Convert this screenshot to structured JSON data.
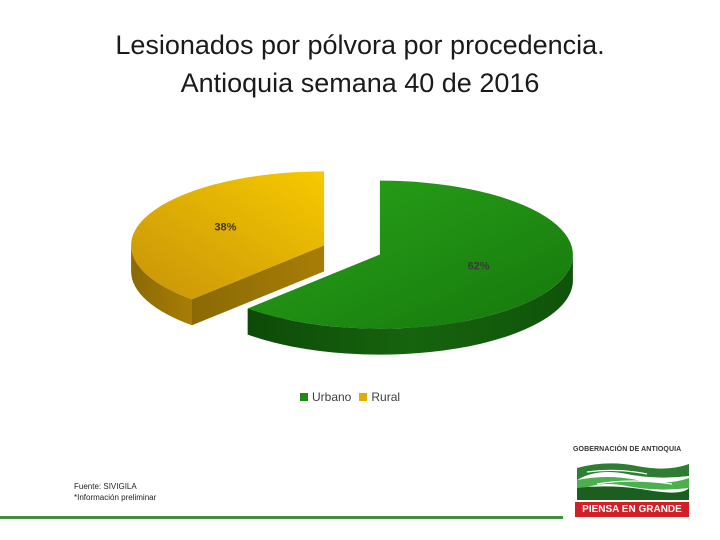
{
  "slide": {
    "title_line1": "Lesionados por pólvora por procedencia.",
    "title_line2": "Antioquia semana 40 de 2016"
  },
  "footer": {
    "source": "Fuente: SIVIGILA",
    "note": "*Información preliminar"
  },
  "logo": {
    "name": "GOBERNACIÓN DE ANTIOQUIA",
    "slogan": "PIENSA EN GRANDE"
  },
  "colors": {
    "urbano": "#1f8a12",
    "rural": "#e2ac07",
    "rule": "#3f8f3a",
    "logo_red": "#d21e26"
  },
  "chart_data": {
    "type": "pie",
    "style": "3d-exploded",
    "title": "",
    "categories": [
      "Urbano",
      "Rural"
    ],
    "values": [
      62,
      38
    ],
    "data_labels": [
      "62%",
      "38%"
    ],
    "legend_position": "bottom"
  }
}
